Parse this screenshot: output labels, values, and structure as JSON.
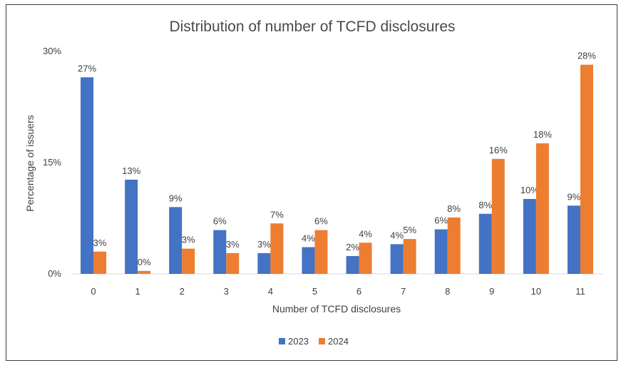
{
  "chart_data": {
    "type": "bar",
    "title": "Distribution of number of TCFD disclosures",
    "xlabel": "Number of TCFD disclosures",
    "ylabel": "Percentage of issuers",
    "ylim": [
      0,
      30
    ],
    "yticks": [
      "0%",
      "15%",
      "30%"
    ],
    "categories": [
      "0",
      "1",
      "2",
      "3",
      "4",
      "5",
      "6",
      "7",
      "8",
      "9",
      "10",
      "11"
    ],
    "series": [
      {
        "name": "2023",
        "color": "#4472C4",
        "values": [
          26.5,
          12.7,
          9.0,
          5.9,
          2.8,
          3.6,
          2.4,
          4.0,
          6.0,
          8.1,
          10.1,
          9.2
        ],
        "labels": [
          "27%",
          "13%",
          "9%",
          "6%",
          "3%",
          "4%",
          "2%",
          "4%",
          "6%",
          "8%",
          "10%",
          "9%"
        ]
      },
      {
        "name": "2024",
        "color": "#ED7D31",
        "values": [
          3.0,
          0.4,
          3.4,
          2.8,
          6.8,
          5.9,
          4.2,
          4.7,
          7.6,
          15.5,
          17.6,
          28.2
        ],
        "labels": [
          "3%",
          "0%",
          "3%",
          "3%",
          "7%",
          "6%",
          "4%",
          "5%",
          "8%",
          "16%",
          "18%",
          "28%"
        ]
      }
    ],
    "legend": {
      "position": "bottom",
      "entries": [
        "2023",
        "2024"
      ]
    }
  }
}
